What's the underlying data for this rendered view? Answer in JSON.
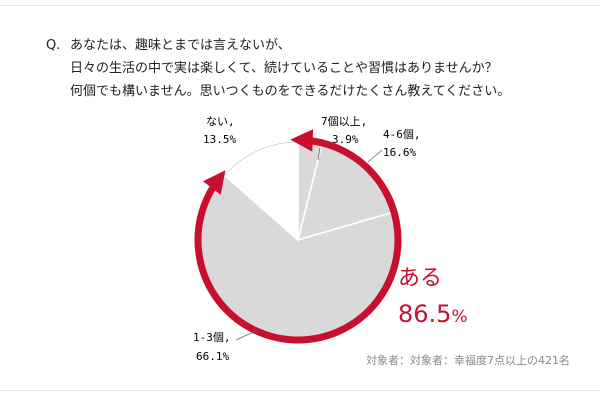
{
  "question": {
    "marker": "Q.",
    "lines": [
      "あなたは、趣味とまでは言えないが、",
      "日々の生活の中で実は楽しくて、続けていることや習慣はありませんか？",
      "何個でも構いません。思いつくものをできるだけたくさん教えてください。"
    ]
  },
  "footnote": "対象者：対象者：幸福度7点以上の421名",
  "colors": {
    "accent": "#c8102e",
    "slice_fill": "#d9d9d9",
    "slice_none": "#ffffff",
    "slice_stroke": "#ffffff",
    "outline": "#bbbbbb"
  },
  "chart_data": {
    "type": "pie",
    "unit": "%",
    "slices": [
      {
        "key": "7plus",
        "name": "7個以上,",
        "value": 3.9,
        "value_label": "3.9%"
      },
      {
        "key": "4to6",
        "name": "4-6個,",
        "value": 16.6,
        "value_label": "16.6%"
      },
      {
        "key": "1to3",
        "name": "1-3個,",
        "value": 66.1,
        "value_label": "66.1%"
      },
      {
        "key": "none",
        "name": "ない,",
        "value": 13.5,
        "value_label": "13.5%"
      }
    ],
    "annotation": {
      "label": "ある",
      "value": "86.5",
      "unit": "%",
      "covers": [
        "7plus",
        "4to6",
        "1to3"
      ]
    }
  }
}
